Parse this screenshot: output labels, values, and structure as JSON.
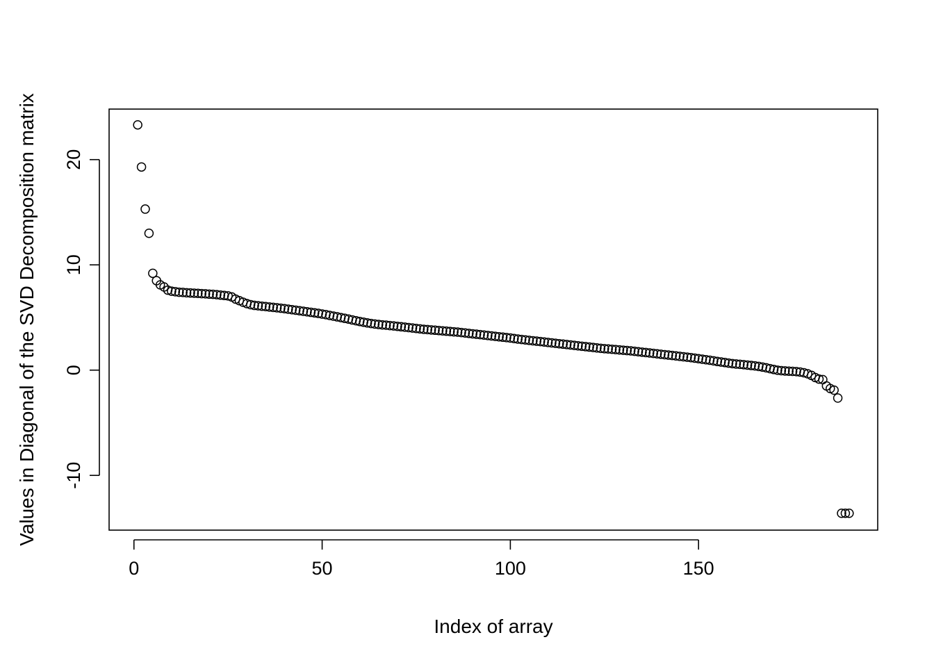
{
  "chart_data": {
    "type": "scatter",
    "title": "",
    "xlabel": "Index of array",
    "ylabel": "Values in Diagonal of the SVD Decomposition matrix",
    "xlim": [
      -6.6,
      197.6
    ],
    "ylim": [
      -15.2,
      24.8
    ],
    "xticks": [
      0,
      50,
      100,
      150
    ],
    "yticks": [
      -10,
      0,
      10,
      20
    ],
    "xtick_labels": [
      "0",
      "50",
      "100",
      "150"
    ],
    "ytick_labels": [
      "-10",
      "0",
      "10",
      "20"
    ],
    "marker": "open-circle",
    "marker_color": "#000000",
    "grid": false,
    "legend": "none",
    "x": [
      1,
      2,
      3,
      4,
      5,
      6,
      7,
      8,
      9,
      10,
      11,
      12,
      13,
      14,
      15,
      16,
      17,
      18,
      19,
      20,
      21,
      22,
      23,
      24,
      25,
      26,
      27,
      28,
      29,
      30,
      31,
      32,
      33,
      34,
      35,
      36,
      37,
      38,
      39,
      40,
      41,
      42,
      43,
      44,
      45,
      46,
      47,
      48,
      49,
      50,
      51,
      52,
      53,
      54,
      55,
      56,
      57,
      58,
      59,
      60,
      61,
      62,
      63,
      64,
      65,
      66,
      67,
      68,
      69,
      70,
      71,
      72,
      73,
      74,
      75,
      76,
      77,
      78,
      79,
      80,
      81,
      82,
      83,
      84,
      85,
      86,
      87,
      88,
      89,
      90,
      91,
      92,
      93,
      94,
      95,
      96,
      97,
      98,
      99,
      100,
      101,
      102,
      103,
      104,
      105,
      106,
      107,
      108,
      109,
      110,
      111,
      112,
      113,
      114,
      115,
      116,
      117,
      118,
      119,
      120,
      121,
      122,
      123,
      124,
      125,
      126,
      127,
      128,
      129,
      130,
      131,
      132,
      133,
      134,
      135,
      136,
      137,
      138,
      139,
      140,
      141,
      142,
      143,
      144,
      145,
      146,
      147,
      148,
      149,
      150,
      151,
      152,
      153,
      154,
      155,
      156,
      157,
      158,
      159,
      160,
      161,
      162,
      163,
      164,
      165,
      166,
      167,
      168,
      169,
      170,
      171,
      172,
      173,
      174,
      175,
      176,
      177,
      178,
      179,
      180,
      181,
      182,
      183,
      184,
      185,
      186,
      187,
      188,
      189,
      190
    ],
    "y": [
      23.3,
      19.3,
      15.3,
      13.0,
      9.2,
      8.5,
      8.1,
      7.9,
      7.6,
      7.5,
      7.45,
      7.4,
      7.38,
      7.35,
      7.33,
      7.31,
      7.29,
      7.27,
      7.25,
      7.22,
      7.2,
      7.17,
      7.13,
      7.09,
      7.05,
      6.95,
      6.75,
      6.6,
      6.45,
      6.32,
      6.22,
      6.15,
      6.11,
      6.07,
      6.04,
      6.0,
      5.96,
      5.92,
      5.88,
      5.84,
      5.79,
      5.74,
      5.69,
      5.64,
      5.59,
      5.54,
      5.49,
      5.44,
      5.39,
      5.33,
      5.27,
      5.2,
      5.13,
      5.06,
      4.99,
      4.92,
      4.85,
      4.77,
      4.69,
      4.62,
      4.55,
      4.49,
      4.43,
      4.38,
      4.34,
      4.3,
      4.27,
      4.23,
      4.2,
      4.16,
      4.12,
      4.08,
      4.04,
      4.0,
      3.96,
      3.92,
      3.88,
      3.85,
      3.82,
      3.79,
      3.76,
      3.73,
      3.7,
      3.67,
      3.64,
      3.61,
      3.57,
      3.53,
      3.49,
      3.45,
      3.41,
      3.37,
      3.33,
      3.29,
      3.25,
      3.21,
      3.17,
      3.13,
      3.09,
      3.05,
      3.0,
      2.95,
      2.91,
      2.87,
      2.83,
      2.79,
      2.75,
      2.71,
      2.67,
      2.63,
      2.59,
      2.55,
      2.51,
      2.47,
      2.43,
      2.39,
      2.35,
      2.31,
      2.27,
      2.23,
      2.19,
      2.15,
      2.11,
      2.07,
      2.04,
      2.01,
      1.98,
      1.95,
      1.92,
      1.89,
      1.86,
      1.83,
      1.79,
      1.75,
      1.71,
      1.67,
      1.63,
      1.59,
      1.55,
      1.51,
      1.47,
      1.43,
      1.39,
      1.35,
      1.31,
      1.27,
      1.23,
      1.19,
      1.14,
      1.09,
      1.04,
      0.99,
      0.94,
      0.88,
      0.82,
      0.77,
      0.72,
      0.67,
      0.62,
      0.58,
      0.55,
      0.52,
      0.48,
      0.44,
      0.4,
      0.35,
      0.29,
      0.22,
      0.14,
      0.06,
      -0.01,
      -0.05,
      -0.08,
      -0.1,
      -0.12,
      -0.14,
      -0.18,
      -0.25,
      -0.35,
      -0.5,
      -0.7,
      -0.85,
      -0.9,
      -1.5,
      -1.75,
      -1.9,
      -2.65,
      -13.6,
      -13.6,
      -13.6
    ]
  }
}
